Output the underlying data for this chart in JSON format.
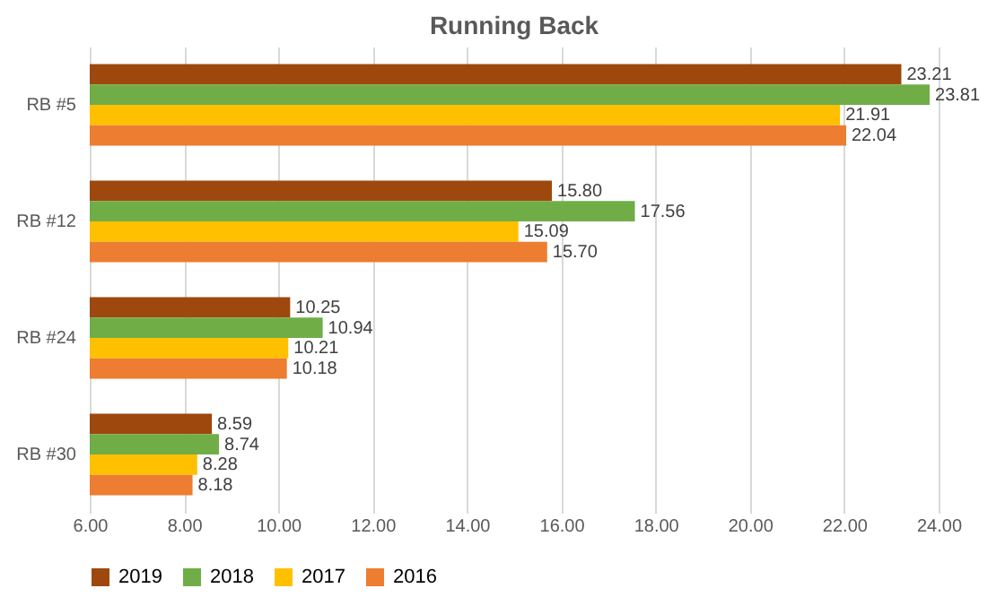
{
  "chart_data": {
    "type": "bar",
    "orientation": "horizontal",
    "title": "Running Back",
    "categories": [
      "RB #5",
      "RB #12",
      "RB #24",
      "RB #30"
    ],
    "series": [
      {
        "name": "2019",
        "color": "#9e480e",
        "values": [
          23.21,
          15.8,
          10.25,
          8.59
        ],
        "value_labels": [
          "23.21",
          "15.80",
          "10.25",
          "8.59"
        ]
      },
      {
        "name": "2018",
        "color": "#70ad47",
        "values": [
          23.81,
          17.56,
          10.94,
          8.74
        ],
        "value_labels": [
          "23.81",
          "17.56",
          "10.94",
          "8.74"
        ]
      },
      {
        "name": "2017",
        "color": "#ffc000",
        "values": [
          21.91,
          15.09,
          10.21,
          8.28
        ],
        "value_labels": [
          "21.91",
          "15.09",
          "10.21",
          "8.28"
        ]
      },
      {
        "name": "2016",
        "color": "#ed7d31",
        "values": [
          22.04,
          15.7,
          10.18,
          8.18
        ],
        "value_labels": [
          "22.04",
          "15.70",
          "10.18",
          "8.18"
        ]
      }
    ],
    "xlim": [
      6,
      24
    ],
    "xticks": [
      {
        "value": 6,
        "label": "6.00"
      },
      {
        "value": 8,
        "label": "8.00"
      },
      {
        "value": 10,
        "label": "10.00"
      },
      {
        "value": 12,
        "label": "12.00"
      },
      {
        "value": 14,
        "label": "14.00"
      },
      {
        "value": 16,
        "label": "16.00"
      },
      {
        "value": 18,
        "label": "18.00"
      },
      {
        "value": 20,
        "label": "20.00"
      },
      {
        "value": 22,
        "label": "22.00"
      },
      {
        "value": 24,
        "label": "24.00"
      }
    ],
    "grid": "x",
    "legend": "bottom"
  }
}
